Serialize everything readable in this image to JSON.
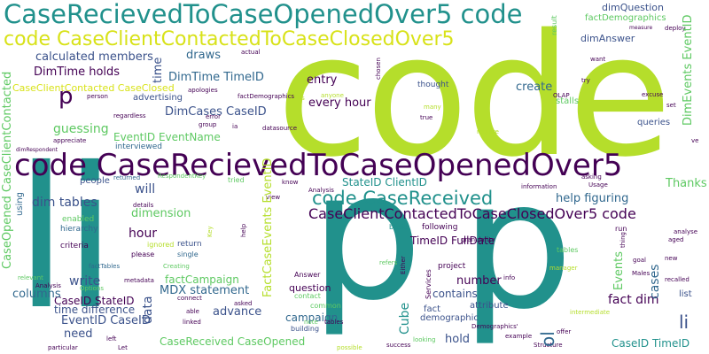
{
  "palette": {
    "dark_purple": "#440154",
    "indigo": "#3b528b",
    "blue": "#31688e",
    "teal": "#21918c",
    "green": "#5ec962",
    "lime": "#b5de2b",
    "light_green": "#addc30"
  },
  "words": {
    "code_big": "code",
    "lip_big_1": "li",
    "lip_big_2": "p",
    "lip_big_3": "p",
    "title_1": "CaseRecievedToCaseOpenedOver5 code",
    "title_2": "code CaseClientContactedToCaseClosedOver5",
    "title_3": "code CaseRecievedToCaseOpenedOver5",
    "cc_cc_code": "CaseClientContactedToCaseClosedOver5 code",
    "code_casereceived": "code CaseReceived",
    "dimtime_holds": "DimTime holds",
    "calculated_members": "calculated members",
    "dimtime_timeid": "DimTime TimeID",
    "dimcases_caseid": "DimCases CaseID",
    "ccc_caseclosed": "CaseClientContacted CaseClosed",
    "every_hour": "every hour",
    "entry": "entry",
    "create": "create",
    "guessing": "guessing",
    "eventid_eventname": "EventID EventName",
    "stateid_clientid": "StateID ClientID",
    "dim_tables": "dim tables",
    "will": "will",
    "dimension": "dimension",
    "hour": "hour",
    "timeid_fulldate": "TimeID FullDate",
    "help_figuring": "help figuring",
    "thanks": "Thanks",
    "fact_dim": "fact dim",
    "number": "number",
    "write": "write",
    "caseid_stateid": "CaseID StateID",
    "mdx_statement": "MDX statement",
    "time_difference": "time difference",
    "eventid_caseid": "EventID CaseID",
    "advance": "advance",
    "need": "need",
    "columns": "columns",
    "factcampaign": "factCampaign",
    "casereceived_caseopened": "CaseReceived CaseOpened",
    "campaign": "campaign",
    "question": "question",
    "cube": "Cube",
    "contains": "contains",
    "hold": "hold",
    "caseid_timeid": "CaseID TimeID",
    "cases": "cases",
    "events": "Events",
    "li_small": "li",
    "ol": "ol",
    "p_small": "p",
    "draws": "draws",
    "time": "time",
    "data": "data",
    "dimevents_eventid": "DimEvents EventID",
    "factcaseevents_eventid": "FactCaseEvents EventID",
    "caseopened_ccc": "CaseOpened CaseClientContacted",
    "dimquestion": "dimQuestion",
    "factdemographics": "factDemographics",
    "dimanswer": "dimAnswer",
    "thought": "thought",
    "stalls": "stalls",
    "queries": "queries",
    "asking": "asking",
    "usage": "Usage",
    "information": "information",
    "advertising": "advertising",
    "want": "want",
    "try": "try",
    "olap": "OLAP",
    "set": "set",
    "excuse": "excuse",
    "deploy": "deploy",
    "measure": "measure",
    "people": "people",
    "using": "using",
    "enabled": "enabled",
    "hierarchy": "hierarchy",
    "criteria": "criteria",
    "relevant": "relevant",
    "analysis": "Analysis",
    "options": "Options",
    "factables": "factTables",
    "metadata": "metadata",
    "creating": "Creating",
    "answer": "Answer",
    "connect": "connect",
    "asked": "asked",
    "able": "able",
    "linked": "linked",
    "particular": "particular",
    "let": "Let",
    "left": "left",
    "interviewed": "interviewed",
    "details": "details",
    "respondentkey": "RespondentKey",
    "please": "please",
    "single": "single",
    "return": "return",
    "ignored": "ignored",
    "contact": "contact",
    "common": "common",
    "building": "building",
    "services": "Services",
    "project": "project",
    "attribute": "attribute",
    "fact": "fact",
    "demographic": "demographic",
    "demographics_q": "Demographics'",
    "example": "example",
    "structure": "Structure",
    "success": "success",
    "looking": "looking",
    "possible": "possible",
    "refers": "refers",
    "either": "Either",
    "info": "info",
    "granularity": "granularity",
    "following": "following",
    "basic": "basic",
    "run": "run",
    "tables": "tables",
    "manager": "manager",
    "intermediate": "intermediate",
    "males": "Males",
    "recalled": "recalled",
    "list": "list",
    "new": "new",
    "analyse": "analyse",
    "aged": "aged",
    "goal": "goal",
    "offer": "offer",
    "thing": "thing",
    "view": "view",
    "key": "Key",
    "help_small": "help",
    "tried": "tried",
    "returned": "returned",
    "apologies": "apologies",
    "person": "person",
    "regardless": "regardless",
    "appreciate": "appreciate",
    "dimrespondent": "dimRespondent",
    "error": "error",
    "group": "group",
    "ia": "ia",
    "datasource": "datasource",
    "actual": "actual",
    "factdemographics_small": "factDemographics",
    "anyone": "anyone",
    "chosen": "chosen",
    "result": "result",
    "many": "many",
    "true": "true",
    "require": "require",
    "know": "know",
    "note": "note",
    "vs": "vs",
    "ve": "ve"
  }
}
